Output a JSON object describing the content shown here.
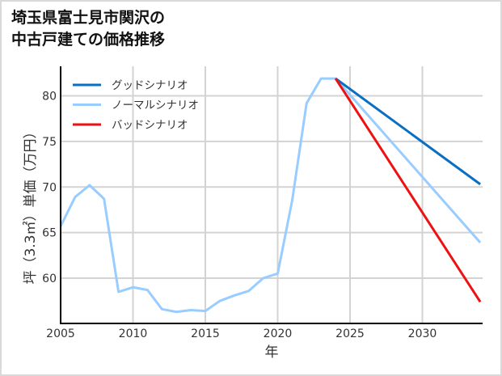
{
  "title_lines": [
    "埼玉県富士見市関沢の",
    "中古戸建ての価格推移"
  ],
  "chart_data": {
    "type": "line",
    "title": "埼玉県富士見市関沢の中古戸建ての価格推移",
    "xlabel": "年",
    "ylabel": "坪（3.3㎡）単価（万円）",
    "xlim": [
      2005,
      2034
    ],
    "ylim": [
      55,
      83
    ],
    "x_ticks": [
      2005,
      2010,
      2015,
      2020,
      2025,
      2030
    ],
    "y_ticks": [
      60,
      65,
      70,
      75,
      80
    ],
    "grid": true,
    "legend_position": "upper left",
    "series": [
      {
        "name": "グッドシナリオ",
        "color": "#0a6fc2",
        "x": [
          2024,
          2034
        ],
        "values": [
          81.9,
          70.3
        ]
      },
      {
        "name": "ノーマルシナリオ",
        "color": "#99ccff",
        "x": [
          2005,
          2006,
          2007,
          2008,
          2009,
          2010,
          2011,
          2012,
          2013,
          2014,
          2015,
          2016,
          2017,
          2018,
          2019,
          2020,
          2021,
          2022,
          2023,
          2024,
          2034
        ],
        "values": [
          65.7,
          68.9,
          70.2,
          68.7,
          58.5,
          59.0,
          58.7,
          56.6,
          56.3,
          56.5,
          56.4,
          57.5,
          58.1,
          58.6,
          60.0,
          60.5,
          68.5,
          79.2,
          81.9,
          81.9,
          63.9
        ]
      },
      {
        "name": "バッドシナリオ",
        "color": "#ee1111",
        "x": [
          2024,
          2034
        ],
        "values": [
          81.9,
          57.4
        ]
      }
    ]
  },
  "legend": [
    {
      "label": "グッドシナリオ",
      "color": "#0a6fc2"
    },
    {
      "label": "ノーマルシナリオ",
      "color": "#99ccff"
    },
    {
      "label": "バッドシナリオ",
      "color": "#ee1111"
    }
  ],
  "axes": {
    "xlabel": "年",
    "ylabel": "坪（3.3㎡）単価（万円）",
    "x_tick_labels": [
      "2005",
      "2010",
      "2015",
      "2020",
      "2025",
      "2030"
    ],
    "y_tick_labels": [
      "60",
      "65",
      "70",
      "75",
      "80"
    ]
  }
}
